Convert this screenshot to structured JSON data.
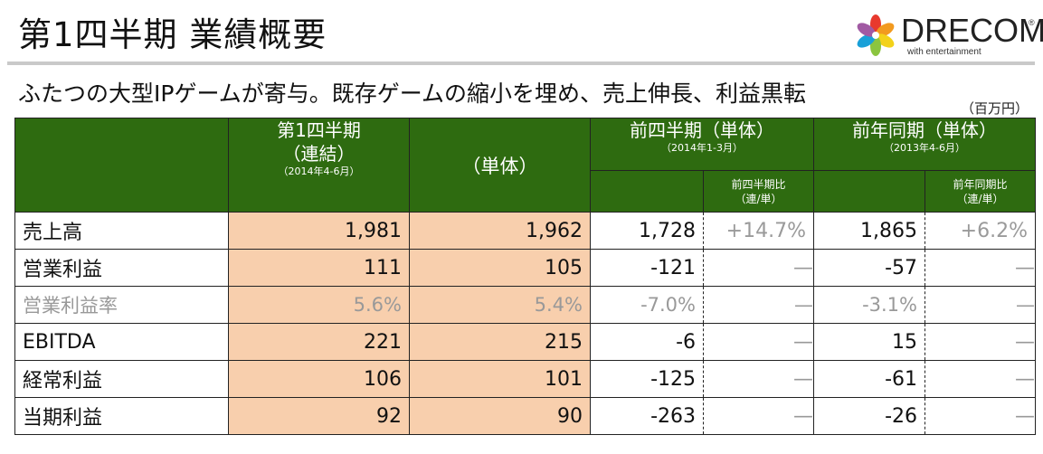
{
  "title": "第1四半期 業績概要",
  "subtitle": "ふたつの大型IPゲームが寄与。既存ゲームの縮小を埋め、売上伸長、利益黒転",
  "unit": "（百万円）",
  "logo": {
    "wordmark": "DRECOM",
    "registered": "®",
    "tagline": "with entertainment",
    "petal_colors": [
      "#e8392e",
      "#f29a1f",
      "#f3d21a",
      "#8bc53f",
      "#19a0d8",
      "#a15aa3"
    ]
  },
  "table": {
    "header": {
      "consolidated": {
        "title": "第1四半期",
        "subtitle": "（連結）",
        "period": "（2014年4-6月）"
      },
      "single": {
        "title": "（単体）"
      },
      "prev_quarter": {
        "title": "前四半期（単体）",
        "period": "（2014年1-3月）",
        "ratio_label_1": "前四半期比",
        "ratio_label_2": "（連/単）"
      },
      "prev_year": {
        "title": "前年同期（単体）",
        "period": "（2013年4-6月）",
        "ratio_label_1": "前年同期比",
        "ratio_label_2": "（連/単）"
      }
    },
    "rows": [
      {
        "label": "売上高",
        "consolidated": "1,981",
        "single": "1,962",
        "prev_q": "1,728",
        "prev_q_ratio": "+14.7%",
        "prev_y": "1,865",
        "prev_y_ratio": "+6.2%"
      },
      {
        "label": "営業利益",
        "consolidated": "111",
        "single": "105",
        "prev_q": "-121",
        "prev_q_ratio": "—",
        "prev_y": "-57",
        "prev_y_ratio": "—"
      },
      {
        "label": "営業利益率",
        "consolidated": "5.6%",
        "single": "5.4%",
        "prev_q": "-7.0%",
        "prev_q_ratio": "—",
        "prev_y": "-3.1%",
        "prev_y_ratio": "—"
      },
      {
        "label": "EBITDA",
        "consolidated": "221",
        "single": "215",
        "prev_q": "-6",
        "prev_q_ratio": "—",
        "prev_y": "15",
        "prev_y_ratio": "—"
      },
      {
        "label": "経常利益",
        "consolidated": "106",
        "single": "101",
        "prev_q": "-125",
        "prev_q_ratio": "—",
        "prev_y": "-61",
        "prev_y_ratio": "—"
      },
      {
        "label": "当期利益",
        "consolidated": "92",
        "single": "90",
        "prev_q": "-263",
        "prev_q_ratio": "—",
        "prev_y": "-26",
        "prev_y_ratio": "—"
      }
    ]
  },
  "colors": {
    "header_green": "#2e6b10",
    "highlight_orange": "#f8cfad",
    "muted_text": "#9a9a9a"
  }
}
